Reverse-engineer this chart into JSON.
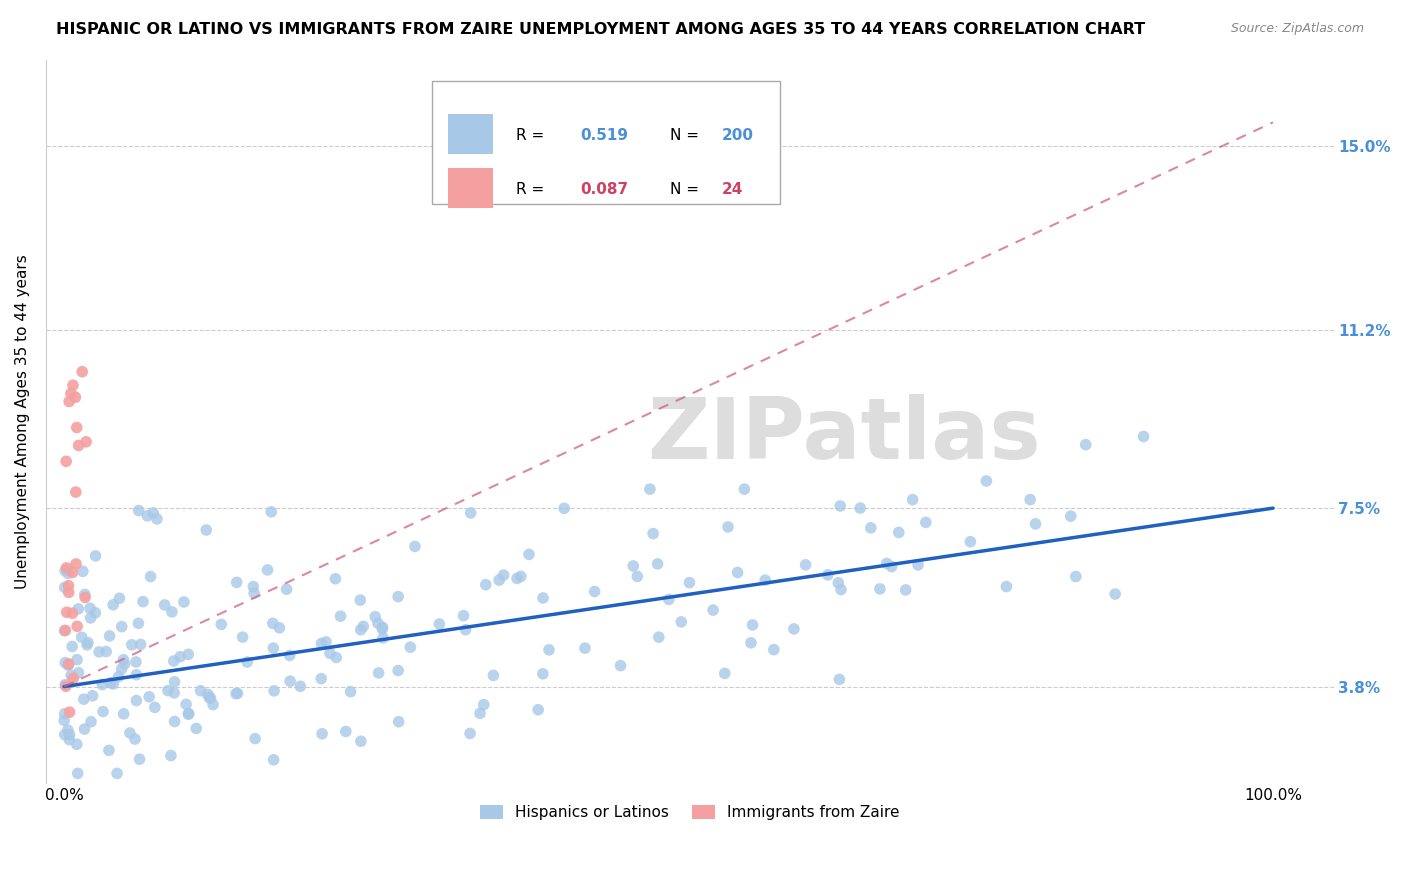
{
  "title": "HISPANIC OR LATINO VS IMMIGRANTS FROM ZAIRE UNEMPLOYMENT AMONG AGES 35 TO 44 YEARS CORRELATION CHART",
  "source": "Source: ZipAtlas.com",
  "ylabel": "Unemployment Among Ages 35 to 44 years",
  "x_tick_labels": [
    "0.0%",
    "100.0%"
  ],
  "y_tick_labels": [
    "3.8%",
    "7.5%",
    "11.2%",
    "15.0%"
  ],
  "y_tick_values": [
    0.038,
    0.075,
    0.112,
    0.15
  ],
  "background_color": "#ffffff",
  "blue_color": "#a8c8e8",
  "pink_color": "#f4a0a0",
  "line_blue_color": "#2060c0",
  "line_pink_color": "#d06080",
  "right_label_color": "#4a90d9",
  "title_fontsize": 11.5,
  "label_fontsize": 11,
  "tick_fontsize": 11,
  "legend_r1_val": "0.519",
  "legend_n1_val": "200",
  "legend_r2_val": "0.087",
  "legend_n2_val": "24",
  "blue_line": [
    0.0,
    0.038,
    1.0,
    0.075
  ],
  "pink_line": [
    0.0,
    0.038,
    1.0,
    0.155
  ],
  "xlim": [
    -0.015,
    1.05
  ],
  "ylim": [
    0.018,
    0.168
  ]
}
